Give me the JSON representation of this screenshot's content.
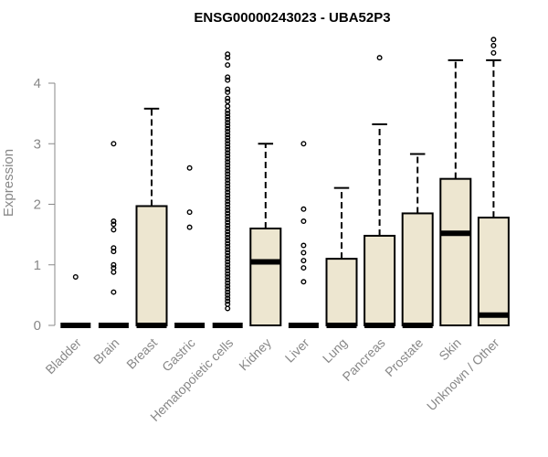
{
  "chart_data": {
    "type": "box",
    "title": "ENSG00000243023 - UBA52P3",
    "xlabel": "",
    "ylabel": "Expression",
    "ylim": [
      0,
      4.8
    ],
    "yticks": [
      0,
      1,
      2,
      3,
      4
    ],
    "box_fill": "#ede6d0",
    "grid": false,
    "categories": [
      "Bladder",
      "Brain",
      "Breast",
      "Gastric",
      "Hematopoietic cells",
      "Kidney",
      "Liver",
      "Lung",
      "Pancreas",
      "Prostate",
      "Skin",
      "Unknown / Other"
    ],
    "boxes": [
      {
        "category": "Bladder",
        "q1": 0,
        "median": 0,
        "q3": 0,
        "whisker_low": 0,
        "whisker_high": 0,
        "outliers": [
          0.8
        ]
      },
      {
        "category": "Brain",
        "q1": 0,
        "median": 0,
        "q3": 0,
        "whisker_low": 0,
        "whisker_high": 0,
        "outliers": [
          3.0,
          1.72,
          1.67,
          1.58,
          1.28,
          1.22,
          1.0,
          0.95,
          0.88,
          0.55
        ]
      },
      {
        "category": "Breast",
        "q1": 0,
        "median": 0,
        "q3": 1.97,
        "whisker_low": 0,
        "whisker_high": 3.58,
        "outliers": []
      },
      {
        "category": "Gastric",
        "q1": 0,
        "median": 0,
        "q3": 0,
        "whisker_low": 0,
        "whisker_high": 0,
        "outliers": [
          2.6,
          1.87,
          1.62
        ]
      },
      {
        "category": "Hematopoietic cells",
        "q1": 0,
        "median": 0,
        "q3": 0,
        "whisker_low": 0,
        "whisker_high": 0,
        "outliers": [
          4.48,
          4.42,
          4.3,
          4.1,
          4.05,
          3.9,
          3.85,
          3.75,
          3.7,
          3.62,
          3.55,
          3.5,
          3.45,
          3.4,
          3.35,
          3.3,
          3.25,
          3.2,
          3.15,
          3.1,
          3.05,
          3.0,
          2.95,
          2.9,
          2.85,
          2.8,
          2.75,
          2.7,
          2.65,
          2.6,
          2.55,
          2.5,
          2.45,
          2.4,
          2.35,
          2.3,
          2.25,
          2.2,
          2.15,
          2.1,
          2.05,
          2.0,
          1.95,
          1.9,
          1.85,
          1.8,
          1.75,
          1.7,
          1.65,
          1.6,
          1.55,
          1.5,
          1.45,
          1.4,
          1.35,
          1.3,
          1.25,
          1.2,
          1.15,
          1.1,
          1.05,
          1.0,
          0.95,
          0.9,
          0.85,
          0.8,
          0.75,
          0.7,
          0.65,
          0.6,
          0.55,
          0.5,
          0.45,
          0.4,
          0.35,
          0.28
        ]
      },
      {
        "category": "Kidney",
        "q1": 0,
        "median": 1.05,
        "q3": 1.6,
        "whisker_low": 0,
        "whisker_high": 3.0,
        "outliers": []
      },
      {
        "category": "Liver",
        "q1": 0,
        "median": 0,
        "q3": 0,
        "whisker_low": 0,
        "whisker_high": 0,
        "outliers": [
          3.0,
          1.92,
          1.72,
          1.32,
          1.2,
          1.07,
          0.95,
          0.72
        ]
      },
      {
        "category": "Lung",
        "q1": 0,
        "median": 0,
        "q3": 1.1,
        "whisker_low": 0,
        "whisker_high": 2.27,
        "outliers": []
      },
      {
        "category": "Pancreas",
        "q1": 0,
        "median": 0,
        "q3": 1.48,
        "whisker_low": 0,
        "whisker_high": 3.32,
        "outliers": [
          4.42
        ]
      },
      {
        "category": "Prostate",
        "q1": 0,
        "median": 0,
        "q3": 1.85,
        "whisker_low": 0,
        "whisker_high": 2.83,
        "outliers": []
      },
      {
        "category": "Skin",
        "q1": 0,
        "median": 1.52,
        "q3": 2.42,
        "whisker_low": 0,
        "whisker_high": 4.38,
        "outliers": []
      },
      {
        "category": "Unknown / Other",
        "q1": 0,
        "median": 0.17,
        "q3": 1.78,
        "whisker_low": 0,
        "whisker_high": 4.38,
        "outliers": [
          4.72,
          4.62,
          4.5
        ]
      }
    ]
  }
}
